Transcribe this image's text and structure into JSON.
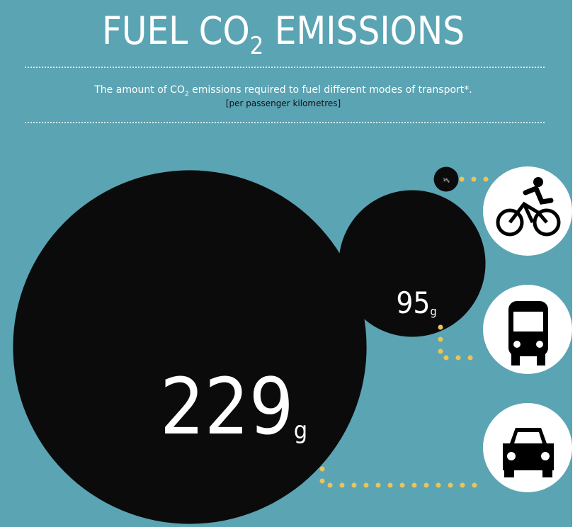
{
  "header": {
    "title": "FUEL CO",
    "title_sub": "2",
    "title_rest": " EMISSIONS",
    "subtitle": "The amount of CO",
    "subtitle_sub": "2",
    "subtitle_rest": " emissions required to fuel different modes of transport*.",
    "note": "[per passenger kilometres]"
  },
  "items": [
    {
      "value": 229,
      "unit": "g"
    },
    {
      "value": 95,
      "unit": "g"
    },
    {
      "value": 16,
      "unit": "g"
    }
  ]
}
